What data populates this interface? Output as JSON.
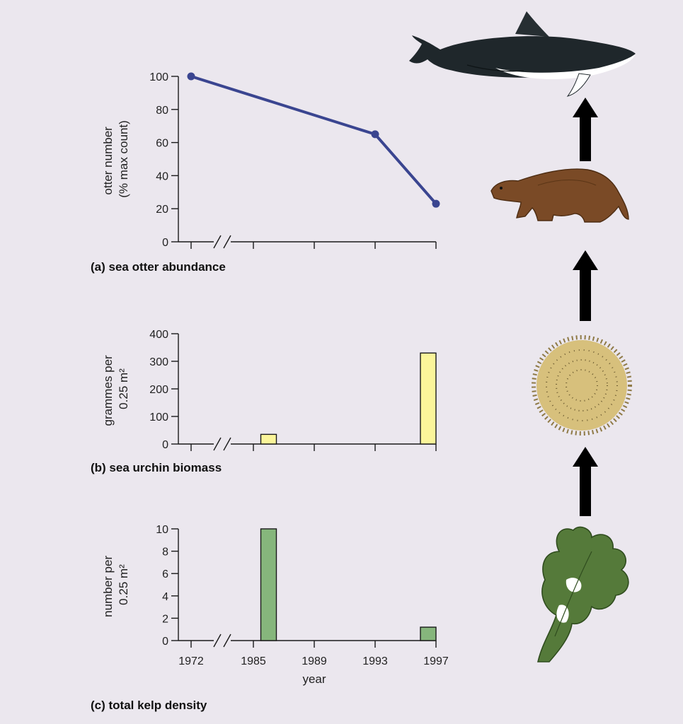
{
  "colors": {
    "background": "#ebe7ee",
    "otter_line": "#3a4590",
    "urchin_bar": "#fbf59a",
    "kelp_bar": "#86b67c",
    "arrow": "#000000"
  },
  "chart_data": [
    {
      "type": "line",
      "caption": "(a) sea otter abundance",
      "ylabel_lines": [
        "otter number",
        "(% max count)"
      ],
      "x": [
        1972,
        1993,
        1997
      ],
      "values": [
        100,
        65,
        23
      ],
      "ylim": [
        0,
        100
      ],
      "yticks": [
        0,
        20,
        40,
        60,
        80,
        100
      ]
    },
    {
      "type": "bar",
      "caption": "(b) sea urchin biomass",
      "ylabel_lines": [
        "grammes per",
        "0.25 m²"
      ],
      "x": [
        1986,
        1997
      ],
      "values": [
        35,
        330
      ],
      "ylim": [
        0,
        400
      ],
      "yticks": [
        0,
        100,
        200,
        300,
        400
      ]
    },
    {
      "type": "bar",
      "caption": "(c) total kelp density",
      "ylabel_lines": [
        "number per",
        "0.25 m²"
      ],
      "x": [
        1986,
        1997
      ],
      "values": [
        10,
        1.2
      ],
      "ylim": [
        0,
        10
      ],
      "yticks": [
        0,
        2,
        4,
        6,
        8,
        10
      ],
      "xlabel": "year",
      "xticks": [
        "1972",
        "1985",
        "1989",
        "1993",
        "1997"
      ]
    }
  ],
  "food_chain": [
    {
      "name": "orca",
      "icon": "orca-icon"
    },
    {
      "name": "sea otter",
      "icon": "sea-otter-icon"
    },
    {
      "name": "sea urchin",
      "icon": "sea-urchin-icon"
    },
    {
      "name": "kelp",
      "icon": "kelp-icon"
    }
  ]
}
